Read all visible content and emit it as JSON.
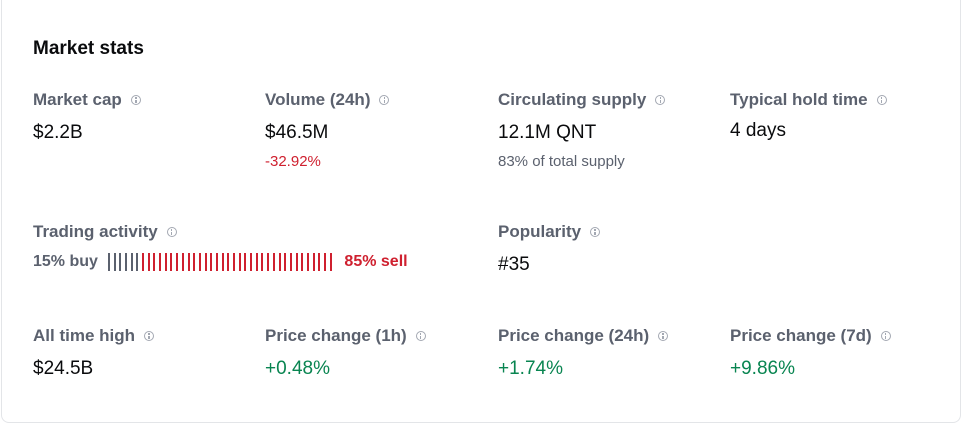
{
  "title": "Market stats",
  "stats": {
    "market_cap": {
      "label": "Market cap",
      "value": "$2.2B"
    },
    "volume": {
      "label": "Volume (24h)",
      "value": "$46.5M",
      "change": "-32.92%"
    },
    "circulating": {
      "label": "Circulating supply",
      "value": "12.1M QNT",
      "note": "83% of total supply"
    },
    "hold_time": {
      "label": "Typical hold time",
      "value": "4 days"
    },
    "trading": {
      "label": "Trading activity",
      "buy": "15% buy",
      "sell": "85% sell",
      "buy_fraction": 0.15
    },
    "popularity": {
      "label": "Popularity",
      "value": "#35"
    },
    "ath": {
      "label": "All time high",
      "value": "$24.5B"
    },
    "pc_1h": {
      "label": "Price change (1h)",
      "value": "+0.48%"
    },
    "pc_24h": {
      "label": "Price change (24h)",
      "value": "+1.74%"
    },
    "pc_7d": {
      "label": "Price change (7d)",
      "value": "+9.86%"
    }
  },
  "colors": {
    "negative": "#cf202f",
    "positive": "#098551",
    "muted": "#5b616e"
  },
  "icons": {
    "info": "info-icon"
  }
}
